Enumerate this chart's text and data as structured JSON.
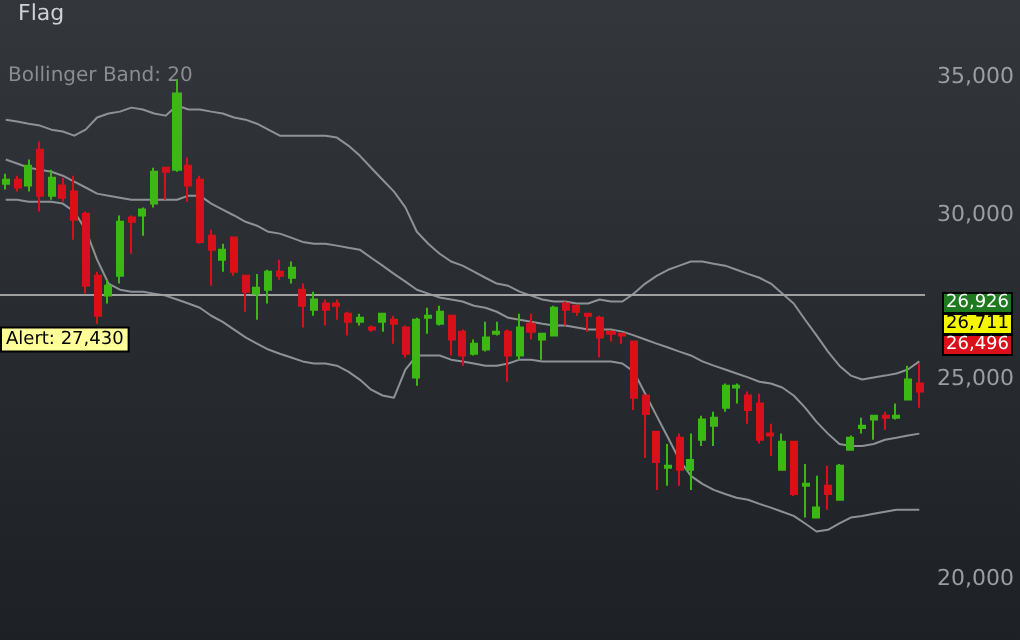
{
  "chart_data": {
    "type": "candlestick",
    "title": "Flag",
    "categories": [
      null,
      null,
      null,
      null,
      null,
      null,
      null,
      null,
      null,
      null,
      null,
      null,
      null,
      null,
      null,
      null,
      null,
      null,
      null,
      null,
      null,
      null,
      null,
      null,
      null,
      null,
      null,
      null,
      null,
      null,
      null,
      null,
      null,
      null,
      null,
      null,
      null,
      null,
      null,
      null,
      null,
      null,
      null,
      null,
      null,
      null,
      null,
      null,
      null,
      null,
      null,
      null,
      null,
      null,
      null,
      null,
      null,
      null,
      null,
      null,
      null,
      null,
      null,
      null,
      null,
      null,
      null,
      null,
      null,
      null,
      null,
      null,
      null,
      null,
      null,
      null,
      null,
      null,
      null,
      null,
      null
    ],
    "ohlc": [
      [
        31040,
        31390,
        30840,
        31180
      ],
      [
        31180,
        31320,
        30770,
        30910
      ],
      [
        30980,
        31890,
        30770,
        31670
      ],
      [
        32240,
        32540,
        30090,
        30630
      ],
      [
        30630,
        31530,
        30490,
        31250
      ],
      [
        30980,
        31250,
        30420,
        30560
      ],
      [
        30770,
        31320,
        29160,
        29820
      ],
      [
        30020,
        30090,
        27460,
        27700
      ],
      [
        28010,
        28140,
        26550,
        26790
      ],
      [
        27400,
        27890,
        27160,
        27700
      ],
      [
        28010,
        29960,
        27770,
        29750
      ],
      [
        29890,
        29960,
        28710,
        29750
      ],
      [
        29960,
        30230,
        29290,
        30160
      ],
      [
        30360,
        31600,
        30230,
        31460
      ],
      [
        31600,
        31600,
        30490,
        31460
      ],
      [
        31530,
        34870,
        31460,
        34330
      ],
      [
        31670,
        31960,
        30420,
        30980
      ],
      [
        31180,
        31320,
        29030,
        29090
      ],
      [
        29290,
        29490,
        27700,
        28840
      ],
      [
        28520,
        29030,
        28140,
        28840
      ],
      [
        29230,
        29230,
        28010,
        28140
      ],
      [
        28010,
        28010,
        26910,
        27520
      ],
      [
        27460,
        28070,
        26670,
        27640
      ],
      [
        27580,
        28200,
        27160,
        28140
      ],
      [
        28140,
        28520,
        27890,
        28010
      ],
      [
        27950,
        28460,
        27770,
        28260
      ],
      [
        27580,
        27770,
        26440,
        27090
      ],
      [
        26970,
        27520,
        26790,
        27280
      ],
      [
        27160,
        27280,
        26500,
        26970
      ],
      [
        27160,
        27280,
        26670,
        27090
      ],
      [
        26850,
        26910,
        26210,
        26610
      ],
      [
        26610,
        26850,
        26500,
        26730
      ],
      [
        26440,
        26500,
        26320,
        26380
      ],
      [
        26610,
        26850,
        26320,
        26850
      ],
      [
        26670,
        26790,
        25970,
        26550
      ],
      [
        26440,
        26500,
        25570,
        25680
      ],
      [
        25010,
        26730,
        24780,
        26670
      ],
      [
        26730,
        27030,
        26260,
        26790
      ],
      [
        26550,
        27090,
        26500,
        26910
      ],
      [
        26790,
        26790,
        25630,
        26090
      ],
      [
        26320,
        26380,
        25340,
        25630
      ],
      [
        25680,
        26090,
        25630,
        25970
      ],
      [
        25800,
        26610,
        25740,
        26150
      ],
      [
        26260,
        26610,
        26210,
        26320
      ],
      [
        26320,
        26380,
        24890,
        25630
      ],
      [
        25630,
        26850,
        25510,
        26440
      ],
      [
        26550,
        26850,
        26090,
        26320
      ],
      [
        26090,
        26260,
        25510,
        26260
      ],
      [
        26210,
        27090,
        26210,
        27030
      ],
      [
        27160,
        27220,
        26500,
        26970
      ],
      [
        27090,
        27090,
        26790,
        26910
      ],
      [
        26850,
        26850,
        26320,
        26790
      ],
      [
        26730,
        26790,
        25570,
        26150
      ],
      [
        26320,
        26320,
        26030,
        26260
      ],
      [
        26260,
        26260,
        25970,
        26210
      ],
      [
        26030,
        26030,
        24120,
        24450
      ],
      [
        24510,
        24510,
        22860,
        24010
      ],
      [
        23540,
        23540,
        22060,
        22760
      ],
      [
        22610,
        23220,
        22160,
        22660
      ],
      [
        23380,
        23490,
        22160,
        22560
      ],
      [
        22560,
        23490,
        22060,
        22810
      ],
      [
        23330,
        23960,
        23170,
        23860
      ],
      [
        23700,
        24070,
        23170,
        23910
      ],
      [
        24180,
        24840,
        24070,
        24780
      ],
      [
        24730,
        24840,
        24290,
        24780
      ],
      [
        24510,
        24620,
        23750,
        24120
      ],
      [
        24290,
        24560,
        23230,
        23330
      ],
      [
        23490,
        23750,
        22910,
        23440
      ],
      [
        22560,
        23490,
        22560,
        23280
      ],
      [
        23280,
        23280,
        21910,
        21960
      ],
      [
        22160,
        22710,
        21390,
        22210
      ],
      [
        21390,
        22410,
        21390,
        21630
      ],
      [
        22160,
        22660,
        21580,
        21960
      ],
      [
        21820,
        22710,
        21820,
        22660
      ],
      [
        23070,
        23440,
        23070,
        23380
      ],
      [
        23640,
        23910,
        23490,
        23700
      ],
      [
        23860,
        23960,
        23330,
        23960
      ],
      [
        23960,
        24070,
        23590,
        23910
      ],
      [
        23910,
        24290,
        23860,
        23960
      ],
      [
        24400,
        25340,
        24400,
        24950
      ],
      [
        24840,
        25400,
        24180,
        24620
      ]
    ],
    "colors": [
      "#3cb815",
      "#d9101a",
      "#3cb815",
      "#d9101a",
      "#3cb815",
      "#d9101a",
      "#d9101a",
      "#d9101a",
      "#d9101a",
      "#3cb815",
      "#3cb815",
      "#d9101a",
      "#3cb815",
      "#3cb815",
      "#d9101a",
      "#3cb815",
      "#d9101a",
      "#d9101a",
      "#d9101a",
      "#3cb815",
      "#d9101a",
      "#d9101a",
      "#3cb815",
      "#3cb815",
      "#d9101a",
      "#3cb815",
      "#d9101a",
      "#3cb815",
      "#d9101a",
      "#d9101a",
      "#d9101a",
      "#3cb815",
      "#d9101a",
      "#3cb815",
      "#d9101a",
      "#d9101a",
      "#3cb815",
      "#3cb815",
      "#3cb815",
      "#d9101a",
      "#d9101a",
      "#3cb815",
      "#3cb815",
      "#3cb815",
      "#d9101a",
      "#3cb815",
      "#d9101a",
      "#3cb815",
      "#3cb815",
      "#d9101a",
      "#d9101a",
      "#d9101a",
      "#d9101a",
      "#d9101a",
      "#d9101a",
      "#d9101a",
      "#d9101a",
      "#d9101a",
      "#3cb815",
      "#d9101a",
      "#3cb815",
      "#3cb815",
      "#3cb815",
      "#3cb815",
      "#3cb815",
      "#d9101a",
      "#d9101a",
      "#d9101a",
      "#3cb815",
      "#d9101a",
      "#3cb815",
      "#3cb815",
      "#d9101a",
      "#3cb815",
      "#3cb815",
      "#3cb815",
      "#3cb815",
      "#d9101a",
      "#3cb815",
      "#3cb815",
      "#d9101a"
    ],
    "series": [
      {
        "type": "line",
        "color": "#8e9195",
        "values": [
          33340,
          33270,
          33190,
          33120,
          32970,
          32900,
          32750,
          32970,
          33420,
          33570,
          33640,
          33790,
          33720,
          33570,
          33490,
          33870,
          33720,
          33720,
          33640,
          33570,
          33420,
          33340,
          33190,
          32970,
          32750,
          32750,
          32750,
          32750,
          32750,
          32680,
          32390,
          32030,
          31600,
          31180,
          30770,
          30230,
          29420,
          29030,
          28710,
          28460,
          28330,
          28140,
          27950,
          27770,
          27700,
          27520,
          27400,
          27280,
          27220,
          27220,
          27160,
          27160,
          27280,
          27220,
          27220,
          27460,
          27770,
          28010,
          28200,
          28330,
          28460,
          28460,
          28390,
          28330,
          28200,
          28070,
          27950,
          27770,
          27460,
          27160,
          26670,
          26210,
          25740,
          25340,
          25060,
          24950,
          25010,
          25060,
          25120,
          25230,
          25460
        ]
      },
      {
        "type": "line",
        "color": "#8e9195",
        "values": [
          31890,
          31750,
          31600,
          31530,
          31460,
          31320,
          31110,
          30910,
          30700,
          30630,
          30560,
          30490,
          30490,
          30490,
          30490,
          30490,
          30630,
          30630,
          30360,
          30160,
          29960,
          29750,
          29620,
          29420,
          29360,
          29230,
          29090,
          29030,
          29030,
          28970,
          28900,
          28840,
          28580,
          28330,
          28070,
          27830,
          27580,
          27460,
          27340,
          27280,
          27220,
          27090,
          27030,
          26910,
          26730,
          26670,
          26610,
          26550,
          26500,
          26500,
          26440,
          26380,
          26380,
          26380,
          26320,
          26210,
          26090,
          25970,
          25860,
          25740,
          25630,
          25460,
          25340,
          25230,
          25120,
          25010,
          24890,
          24840,
          24730,
          24510,
          24180,
          23800,
          23490,
          23220,
          23170,
          23170,
          23220,
          23330,
          23380,
          23440,
          23490
        ]
      },
      {
        "type": "line",
        "color": "#8e9195",
        "values": [
          30490,
          30490,
          30420,
          30420,
          30420,
          30360,
          30090,
          29490,
          28520,
          27770,
          27580,
          27520,
          27520,
          27460,
          27400,
          27280,
          27160,
          27030,
          26790,
          26610,
          26380,
          26150,
          25970,
          25800,
          25680,
          25570,
          25460,
          25400,
          25400,
          25340,
          25170,
          24950,
          24670,
          24510,
          24450,
          25230,
          25630,
          25630,
          25630,
          25510,
          25460,
          25400,
          25340,
          25340,
          25400,
          25510,
          25510,
          25460,
          25460,
          25460,
          25460,
          25460,
          25460,
          25460,
          25400,
          25170,
          24560,
          23960,
          23380,
          22810,
          22410,
          22210,
          22060,
          21960,
          21870,
          21820,
          21720,
          21630,
          21530,
          21430,
          21250,
          21060,
          21100,
          21250,
          21390,
          21430,
          21480,
          21530,
          21580,
          21580,
          21580
        ]
      }
    ],
    "log": "y",
    "ylim": [
      18660,
      38100
    ],
    "yticks": [
      {
        "value": 20000,
        "label": "20,000"
      },
      {
        "value": 25000,
        "label": "25,000"
      },
      {
        "value": 30000,
        "label": "30,000"
      },
      {
        "value": 35000,
        "label": "35,000"
      }
    ],
    "tick_labels": "y",
    "grid": false,
    "ref_lines": [
      {
        "axis": "y",
        "value": 27430,
        "label": "Alert: 27,430",
        "color": "#a0a0a0"
      }
    ],
    "annotations": [
      "Bollinger Band: 20",
      "26,926",
      "26,711",
      "26,496"
    ]
  }
}
